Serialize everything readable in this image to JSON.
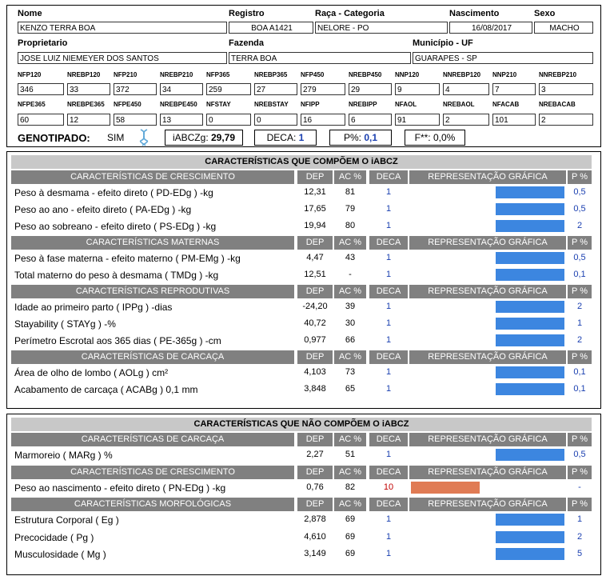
{
  "header": {
    "nome_label": "Nome",
    "nome": "KENZO TERRA BOA",
    "registro_label": "Registro",
    "registro": "BOA A1421",
    "raca_label": "Raça - Categoria",
    "raca": "NELORE - PO",
    "nascimento_label": "Nascimento",
    "nascimento": "16/08/2017",
    "sexo_label": "Sexo",
    "sexo": "MACHO",
    "proprietario_label": "Proprietario",
    "proprietario": "JOSE LUIZ NIEMEYER DOS SANTOS",
    "fazenda_label": "Fazenda",
    "fazenda": "TERRA BOA",
    "municipio_label": "Município - UF",
    "municipio": "GUARAPES - SP"
  },
  "metrics_row1": [
    {
      "label": "NFP120",
      "value": "346"
    },
    {
      "label": "NREBP120",
      "value": "33"
    },
    {
      "label": "NFP210",
      "value": "372"
    },
    {
      "label": "NREBP210",
      "value": "34"
    },
    {
      "label": "NFP365",
      "value": "259"
    },
    {
      "label": "NREBP365",
      "value": "27"
    },
    {
      "label": "NFP450",
      "value": "279"
    },
    {
      "label": "NREBP450",
      "value": "29"
    },
    {
      "label": "NNP120",
      "value": "9"
    },
    {
      "label": "NNREBP120",
      "value": "4"
    },
    {
      "label": "NNP210",
      "value": "7"
    },
    {
      "label": "NNREBP210",
      "value": "3"
    }
  ],
  "metrics_row2": [
    {
      "label": "NFPE365",
      "value": "60"
    },
    {
      "label": "NREBPE365",
      "value": "12"
    },
    {
      "label": "NFPE450",
      "value": "58"
    },
    {
      "label": "NREBPE450",
      "value": "13"
    },
    {
      "label": "NFSTAY",
      "value": "0"
    },
    {
      "label": "NREBSTAY",
      "value": "0"
    },
    {
      "label": "NFIPP",
      "value": "16"
    },
    {
      "label": "NREBIPP",
      "value": "6"
    },
    {
      "label": "NFAOL",
      "value": "91"
    },
    {
      "label": "NREBAOL",
      "value": "2"
    },
    {
      "label": "NFACAB",
      "value": "101"
    },
    {
      "label": "NREBACAB",
      "value": "2"
    }
  ],
  "genotipado": {
    "label": "GENOTIPADO:",
    "value": "SIM",
    "iabcz_label": "iABCZg:",
    "iabcz": "29,79",
    "deca_label": "DECA:",
    "deca": "1",
    "p_label": "P%:",
    "p": "0,1",
    "f_label": "F**:",
    "f": "0,0%"
  },
  "cols": {
    "dep": "DEP",
    "ac": "AC %",
    "deca": "DECA",
    "graf": "REPRESENTAÇÃO GRÁFICA",
    "p": "P %"
  },
  "colors": {
    "blue_bar": "#3c86e0",
    "orange_bar": "#e07b54",
    "header_gray": "#808080",
    "title_gray": "#c8c8c8",
    "deca_red": "#c00000"
  },
  "section1": {
    "title": "CARACTERÍSTICAS QUE COMPÕEM O iABCZ",
    "groups": [
      {
        "name": "CARACTERÍSTICAS DE CRESCIMENTO",
        "rows": [
          {
            "label": "Peso à desmama - efeito direto ( PD-EDg ) -kg",
            "dep": "12,31",
            "ac": "81",
            "deca": "1",
            "p": "0,5",
            "bar": 0.9
          },
          {
            "label": "Peso ao ano - efeito direto ( PA-EDg ) -kg",
            "dep": "17,65",
            "ac": "79",
            "deca": "1",
            "p": "0,5",
            "bar": 0.9
          },
          {
            "label": "Peso ao sobreano - efeito direto ( PS-EDg ) -kg",
            "dep": "19,94",
            "ac": "80",
            "deca": "1",
            "p": "2",
            "bar": 0.9
          }
        ]
      },
      {
        "name": "CARACTERÍSTICAS MATERNAS",
        "rows": [
          {
            "label": "Peso à fase materna - efeito materno ( PM-EMg ) -kg",
            "dep": "4,47",
            "ac": "43",
            "deca": "1",
            "p": "0,5",
            "bar": 0.9
          },
          {
            "label": "Total materno do peso à desmama ( TMDg ) -kg",
            "dep": "12,51",
            "ac": "-",
            "deca": "1",
            "p": "0,1",
            "bar": 0.9
          }
        ]
      },
      {
        "name": "CARACTERÍSTICAS REPRODUTIVAS",
        "rows": [
          {
            "label": "Idade ao primeiro parto ( IPPg ) -dias",
            "dep": "-24,20",
            "ac": "39",
            "deca": "1",
            "p": "2",
            "bar": 0.9
          },
          {
            "label": "Stayability ( STAYg ) -%",
            "dep": "40,72",
            "ac": "30",
            "deca": "1",
            "p": "1",
            "bar": 0.9
          },
          {
            "label": "Perímetro Escrotal aos 365 dias ( PE-365g ) -cm",
            "dep": "0,977",
            "ac": "66",
            "deca": "1",
            "p": "2",
            "bar": 0.9
          }
        ]
      },
      {
        "name": "CARACTERÍSTICAS DE CARCAÇA",
        "rows": [
          {
            "label": "Área de olho de lombo ( AOLg ) cm²",
            "dep": "4,103",
            "ac": "73",
            "deca": "1",
            "p": "0,1",
            "bar": 0.9
          },
          {
            "label": "Acabamento de carcaça ( ACABg ) 0,1 mm",
            "dep": "3,848",
            "ac": "65",
            "deca": "1",
            "p": "0,1",
            "bar": 0.9
          }
        ]
      }
    ]
  },
  "section2": {
    "title": "CARACTERÍSTICAS QUE NÃO COMPÕEM O iABCZ",
    "groups": [
      {
        "name": "CARACTERÍSTICAS DE CARCAÇA",
        "rows": [
          {
            "label": "Marmoreio ( MARg ) %",
            "dep": "2,27",
            "ac": "51",
            "deca": "1",
            "p": "0,5",
            "bar": 0.9
          }
        ]
      },
      {
        "name": "CARACTERÍSTICAS DE CRESCIMENTO",
        "rows": [
          {
            "label": "Peso ao nascimento - efeito direto ( PN-EDg ) -kg",
            "dep": "0,76",
            "ac": "82",
            "deca": "10",
            "p": "-",
            "bar": 0.9,
            "neg": true
          }
        ]
      },
      {
        "name": "CARACTERÍSTICAS MORFOLÓGICAS",
        "rows": [
          {
            "label": "Estrutura Corporal ( Eg )",
            "dep": "2,878",
            "ac": "69",
            "deca": "1",
            "p": "1",
            "bar": 0.9
          },
          {
            "label": "Precocidade ( Pg )",
            "dep": "4,610",
            "ac": "69",
            "deca": "1",
            "p": "2",
            "bar": 0.9
          },
          {
            "label": "Musculosidade ( Mg )",
            "dep": "3,149",
            "ac": "69",
            "deca": "1",
            "p": "5",
            "bar": 0.9
          }
        ]
      }
    ]
  }
}
